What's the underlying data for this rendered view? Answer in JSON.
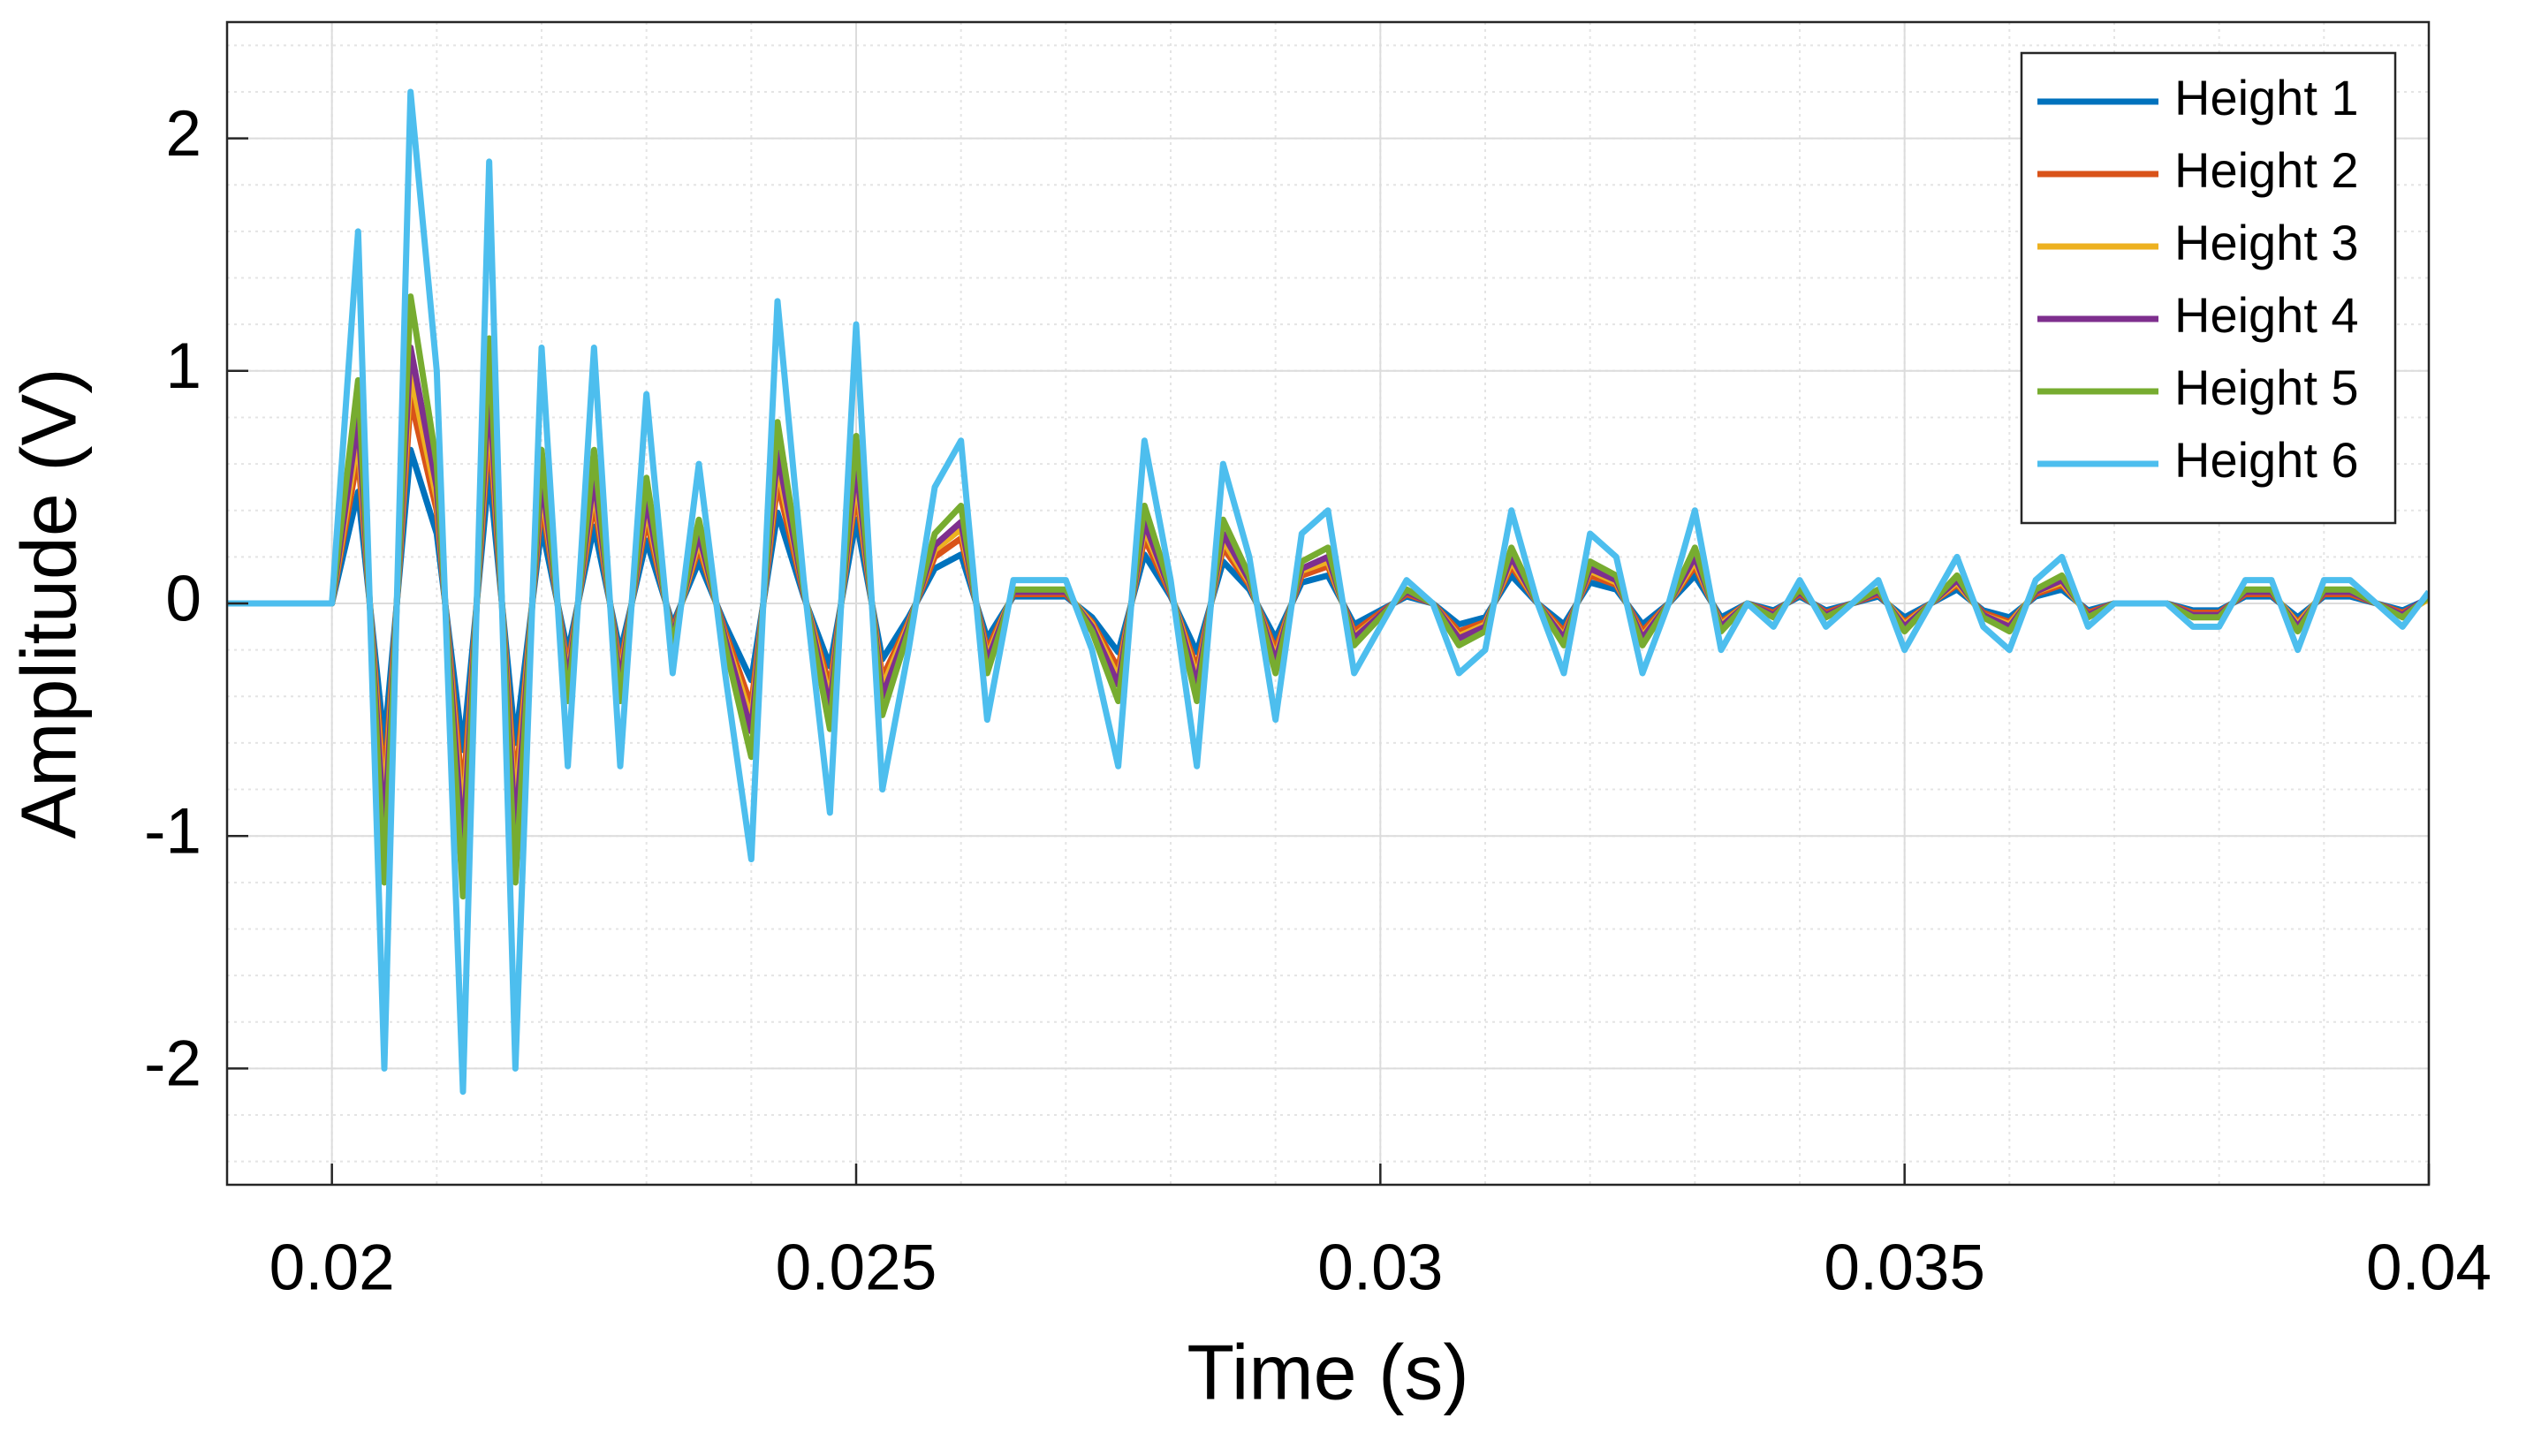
{
  "chart_data": {
    "type": "line",
    "xlabel": "Time (s)",
    "ylabel": "Amplitude (V)",
    "x": [
      0.019,
      0.01975,
      0.02,
      0.02025,
      0.0205,
      0.02075,
      0.021,
      0.02125,
      0.0215,
      0.02175,
      0.022,
      0.02225,
      0.0225,
      0.02275,
      0.023,
      0.02325,
      0.0235,
      0.02375,
      0.024,
      0.02425,
      0.0245,
      0.02475,
      0.025,
      0.02525,
      0.0255,
      0.02575,
      0.026,
      0.02625,
      0.0265,
      0.02675,
      0.027,
      0.02725,
      0.0275,
      0.02775,
      0.028,
      0.02825,
      0.0285,
      0.02875,
      0.029,
      0.02925,
      0.0295,
      0.02975,
      0.03,
      0.03025,
      0.0305,
      0.03075,
      0.031,
      0.03125,
      0.0315,
      0.03175,
      0.032,
      0.03225,
      0.0325,
      0.03275,
      0.033,
      0.03325,
      0.0335,
      0.03375,
      0.034,
      0.03425,
      0.0345,
      0.03475,
      0.035,
      0.03525,
      0.0355,
      0.03575,
      0.036,
      0.03625,
      0.0365,
      0.03675,
      0.037,
      0.03725,
      0.0375,
      0.03775,
      0.038,
      0.03825,
      0.0385,
      0.03875,
      0.039,
      0.03925,
      0.0395,
      0.03975,
      0.04
    ],
    "series": [
      {
        "name": "Height 1",
        "color": "#0072BD",
        "values": [
          0,
          0,
          0,
          0.48,
          -0.6,
          0.66,
          0.3,
          -0.63,
          0.57,
          -0.6,
          0.33,
          -0.21,
          0.33,
          -0.21,
          0.27,
          -0.09,
          0.18,
          -0.09,
          -0.33,
          0.39,
          0.03,
          -0.27,
          0.36,
          -0.24,
          -0.06,
          0.15,
          0.21,
          -0.15,
          0.03,
          0.03,
          0.03,
          -0.06,
          -0.21,
          0.21,
          0.03,
          -0.21,
          0.18,
          0.06,
          -0.15,
          0.09,
          0.12,
          -0.09,
          -0.03,
          0.03,
          0,
          -0.09,
          -0.06,
          0.12,
          0,
          -0.09,
          0.09,
          0.06,
          -0.09,
          0,
          0.12,
          -0.06,
          0,
          -0.03,
          0.03,
          -0.03,
          0,
          0.03,
          -0.06,
          0,
          0.06,
          -0.03,
          -0.06,
          0.03,
          0.06,
          -0.03,
          0,
          0,
          0,
          -0.03,
          -0.03,
          0.03,
          0.03,
          -0.06,
          0.03,
          0.03,
          0,
          -0.03,
          0.02
        ]
      },
      {
        "name": "Height 2",
        "color": "#D95319",
        "values": [
          0,
          0,
          0,
          0.64,
          -0.8,
          0.88,
          0.4,
          -0.84,
          0.76,
          -0.8,
          0.44,
          -0.28,
          0.44,
          -0.28,
          0.36,
          -0.12,
          0.24,
          -0.12,
          -0.44,
          0.52,
          0.04,
          -0.36,
          0.48,
          -0.32,
          -0.08,
          0.2,
          0.28,
          -0.2,
          0.04,
          0.04,
          0.04,
          -0.08,
          -0.28,
          0.28,
          0.04,
          -0.28,
          0.24,
          0.08,
          -0.2,
          0.12,
          0.16,
          -0.12,
          -0.04,
          0.04,
          0,
          -0.12,
          -0.08,
          0.16,
          0,
          -0.12,
          0.12,
          0.08,
          -0.12,
          0,
          0.16,
          -0.08,
          0,
          -0.04,
          0.04,
          -0.04,
          0,
          0.04,
          -0.08,
          0,
          0.08,
          -0.04,
          -0.08,
          0.04,
          0.08,
          -0.04,
          0,
          0,
          0,
          -0.04,
          -0.04,
          0.04,
          0.04,
          -0.08,
          0.04,
          0.04,
          0,
          -0.04,
          0.02
        ]
      },
      {
        "name": "Height 3",
        "color": "#EDB120",
        "values": [
          0,
          0,
          0,
          0.72,
          -0.9,
          0.99,
          0.45,
          -0.95,
          0.86,
          -0.9,
          0.5,
          -0.32,
          0.5,
          -0.32,
          0.41,
          -0.14,
          0.27,
          -0.14,
          -0.5,
          0.59,
          0.05,
          -0.41,
          0.54,
          -0.36,
          -0.09,
          0.23,
          0.32,
          -0.23,
          0.05,
          0.05,
          0.05,
          -0.09,
          -0.32,
          0.32,
          0.05,
          -0.32,
          0.27,
          0.09,
          -0.23,
          0.14,
          0.18,
          -0.14,
          -0.05,
          0.05,
          0,
          -0.14,
          -0.09,
          0.18,
          0,
          -0.14,
          0.14,
          0.09,
          -0.14,
          0,
          0.18,
          -0.09,
          0,
          -0.05,
          0.05,
          -0.05,
          0,
          0.05,
          -0.09,
          0,
          0.09,
          -0.05,
          -0.09,
          0.05,
          0.09,
          -0.05,
          0,
          0,
          0,
          -0.05,
          -0.05,
          0.05,
          0.05,
          -0.09,
          0.05,
          0.05,
          0,
          -0.05,
          0.02
        ]
      },
      {
        "name": "Height 4",
        "color": "#7E2F8E",
        "values": [
          0,
          0,
          0,
          0.8,
          -1.0,
          1.1,
          0.5,
          -1.05,
          0.95,
          -1.0,
          0.55,
          -0.35,
          0.55,
          -0.35,
          0.45,
          -0.15,
          0.3,
          -0.15,
          -0.55,
          0.65,
          0.05,
          -0.45,
          0.6,
          -0.4,
          -0.1,
          0.25,
          0.35,
          -0.25,
          0.05,
          0.05,
          0.05,
          -0.1,
          -0.35,
          0.35,
          0.05,
          -0.35,
          0.3,
          0.1,
          -0.25,
          0.15,
          0.2,
          -0.15,
          -0.05,
          0.05,
          0,
          -0.15,
          -0.1,
          0.2,
          0,
          -0.15,
          0.15,
          0.1,
          -0.15,
          0,
          0.2,
          -0.1,
          0,
          -0.05,
          0.05,
          -0.05,
          0,
          0.05,
          -0.1,
          0,
          0.1,
          -0.05,
          -0.1,
          0.05,
          0.1,
          -0.05,
          0,
          0,
          0,
          -0.05,
          -0.05,
          0.05,
          0.05,
          -0.1,
          0.05,
          0.05,
          0,
          -0.05,
          0.03
        ]
      },
      {
        "name": "Height 5",
        "color": "#77AC30",
        "values": [
          0,
          0,
          0,
          0.96,
          -1.2,
          1.32,
          0.6,
          -1.26,
          1.14,
          -1.2,
          0.66,
          -0.42,
          0.66,
          -0.42,
          0.54,
          -0.18,
          0.36,
          -0.18,
          -0.66,
          0.78,
          0.06,
          -0.54,
          0.72,
          -0.48,
          -0.12,
          0.3,
          0.42,
          -0.3,
          0.06,
          0.06,
          0.06,
          -0.12,
          -0.42,
          0.42,
          0.06,
          -0.42,
          0.36,
          0.12,
          -0.3,
          0.18,
          0.24,
          -0.18,
          -0.06,
          0.06,
          0,
          -0.18,
          -0.12,
          0.24,
          0,
          -0.18,
          0.18,
          0.12,
          -0.18,
          0,
          0.24,
          -0.12,
          0,
          -0.06,
          0.06,
          -0.06,
          0,
          0.06,
          -0.12,
          0,
          0.12,
          -0.06,
          -0.12,
          0.06,
          0.12,
          -0.06,
          0,
          0,
          0,
          -0.06,
          -0.06,
          0.06,
          0.06,
          -0.12,
          0.06,
          0.06,
          0,
          -0.06,
          0.03
        ]
      },
      {
        "name": "Height 6",
        "color": "#4DBEEE",
        "values": [
          0,
          0,
          0,
          1.6,
          -2.0,
          2.2,
          1.0,
          -2.1,
          1.9,
          -2.0,
          1.1,
          -0.7,
          1.1,
          -0.7,
          0.9,
          -0.3,
          0.6,
          -0.3,
          -1.1,
          1.3,
          0.1,
          -0.9,
          1.2,
          -0.8,
          -0.2,
          0.5,
          0.7,
          -0.5,
          0.1,
          0.1,
          0.1,
          -0.2,
          -0.7,
          0.7,
          0.1,
          -0.7,
          0.6,
          0.2,
          -0.5,
          0.3,
          0.4,
          -0.3,
          -0.1,
          0.1,
          0.0,
          -0.3,
          -0.2,
          0.4,
          0.0,
          -0.3,
          0.3,
          0.2,
          -0.3,
          0.0,
          0.4,
          -0.2,
          0.0,
          -0.1,
          0.1,
          -0.1,
          0.0,
          0.1,
          -0.2,
          0.0,
          0.2,
          -0.1,
          -0.2,
          0.1,
          0.2,
          -0.1,
          0.0,
          0.0,
          0.0,
          -0.1,
          -0.1,
          0.1,
          0.1,
          -0.2,
          0.1,
          0.1,
          0.0,
          -0.1,
          0.05
        ]
      }
    ],
    "xlim": [
      0.019,
      0.04
    ],
    "xticks": [
      0.02,
      0.025,
      0.03,
      0.035,
      0.04
    ],
    "ylim": [
      -2.5,
      2.5
    ],
    "yticks": [
      -2,
      -1,
      0,
      1,
      2
    ],
    "grid": true,
    "minor_grid": true,
    "legend": "northeast"
  }
}
